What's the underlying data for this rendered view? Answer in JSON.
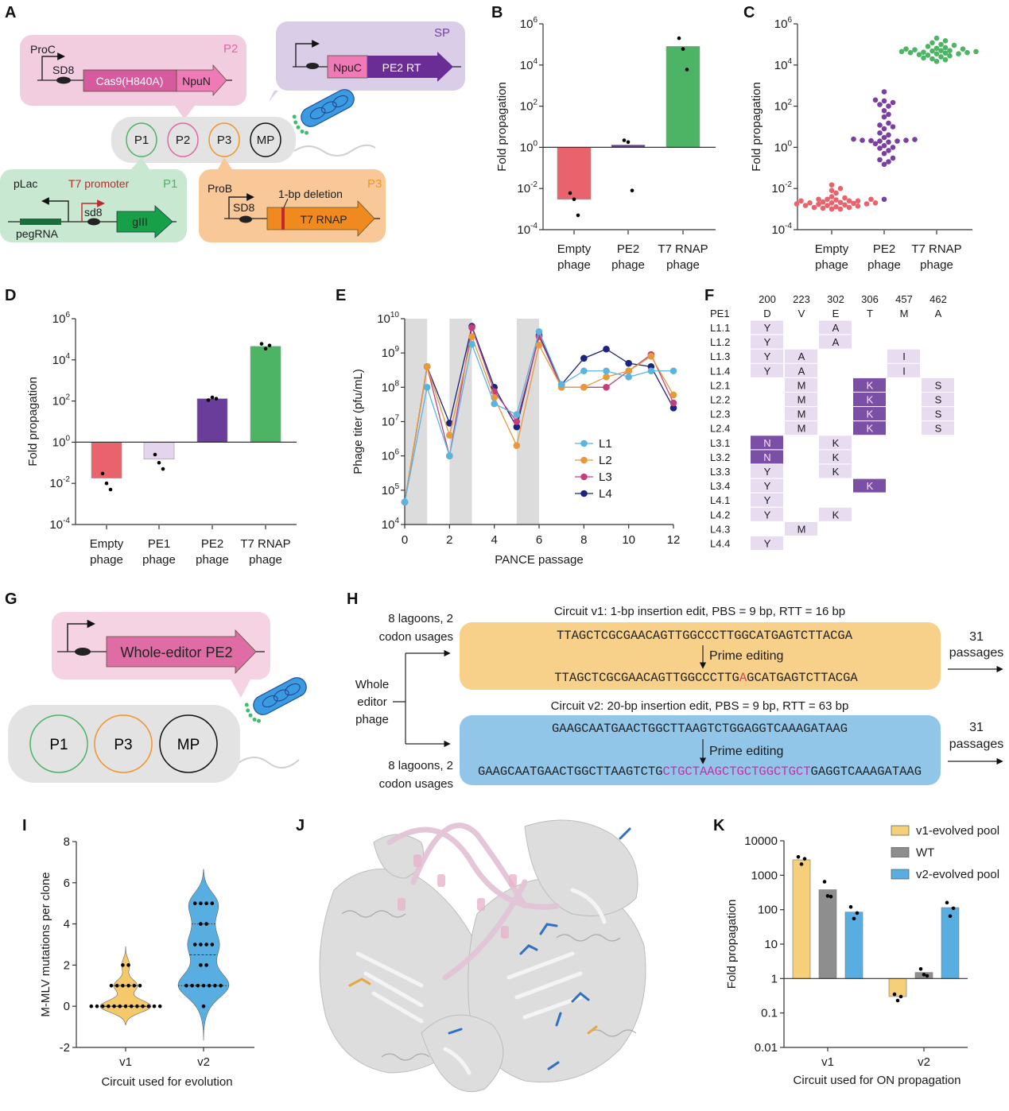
{
  "panels": {
    "A": "A",
    "B": "B",
    "C": "C",
    "D": "D",
    "E": "E",
    "F": "F",
    "G": "G",
    "H": "H",
    "I": "I",
    "J": "J",
    "K": "K"
  },
  "panel_a": {
    "p2": {
      "tag": "P2",
      "promoter": "ProC",
      "rbs": "SD8",
      "gene1": "Cas9(H840A)",
      "gene2": "NpuN"
    },
    "sp": {
      "tag": "SP",
      "gene1": "NpuC",
      "gene2": "PE2 RT"
    },
    "cell": {
      "p1": "P1",
      "p2": "P2",
      "p3": "P3",
      "mp": "MP"
    },
    "p1": {
      "tag": "P1",
      "plac": "pLac",
      "t7": "T7 promoter",
      "rbs": "sd8",
      "grna": "pegRNA",
      "gene": "gIII"
    },
    "p3": {
      "tag": "P3",
      "promoter": "ProB",
      "rbs": "SD8",
      "deletion": "1-bp deletion",
      "gene": "T7 RNAP"
    },
    "colors": {
      "p1": "#4cb464",
      "p2": "#e066a6",
      "p3": "#f0952a",
      "sp": "#7b3fa0",
      "t7_promoter": "#c0282d"
    }
  },
  "chart_data": [
    {
      "panel": "B",
      "type": "bar",
      "yscale": "log",
      "ylim": [
        0.0001,
        1000000
      ],
      "baseline": 1,
      "ylabel": "Fold propagation",
      "xlabel": "",
      "categories": [
        "Empty phage",
        "PE2 phage",
        "T7 RNAP phage"
      ],
      "values": [
        0.003,
        1.3,
        80000
      ],
      "points": [
        [
          0.006,
          0.003,
          0.0005
        ],
        [
          2.2,
          1.8,
          0.008
        ],
        [
          200000,
          60000,
          6000
        ]
      ],
      "colors": [
        "#e8636b",
        "#6a3d9a",
        "#4cb464"
      ]
    },
    {
      "panel": "C",
      "type": "scatter",
      "yscale": "log",
      "ylim": [
        0.0001,
        1000000
      ],
      "ylabel": "Fold propagation",
      "xlabel": "",
      "categories": [
        "Empty phage",
        "PE2 phage",
        "T7 RNAP phage"
      ],
      "colors": [
        "#e8636b",
        "#7b3fa0",
        "#4cb464"
      ],
      "points": [
        [
          0.015,
          0.01,
          0.008,
          0.006,
          0.004,
          0.0035,
          0.003,
          0.003,
          0.0028,
          0.0025,
          0.0025,
          0.0022,
          0.002,
          0.002,
          0.002,
          0.0019,
          0.0018,
          0.0018,
          0.0017,
          0.0016,
          0.0015,
          0.0015,
          0.0014,
          0.0013,
          0.0012,
          0.0012,
          0.0011,
          0.001,
          0.001,
          0.0025,
          0.003,
          0.0021
        ],
        [
          500,
          200,
          180,
          150,
          120,
          100,
          60,
          40,
          30,
          15,
          12,
          10,
          8,
          5,
          4,
          3,
          2.5,
          2.2,
          2.2,
          2,
          2,
          1.8,
          1.5,
          1.2,
          1,
          0.9,
          0.7,
          0.5,
          0.3,
          0.25,
          0.2,
          0.15,
          0.003,
          2.4,
          2.1
        ],
        [
          200000,
          150000,
          120000,
          100000,
          90000,
          80000,
          70000,
          65000,
          60000,
          55000,
          50000,
          48000,
          45000,
          42000,
          40000,
          38000,
          35000,
          32000,
          30000,
          28000,
          25000,
          22000,
          20000,
          18000,
          15000,
          50000,
          45000,
          40000,
          60000,
          35000
        ]
      ]
    },
    {
      "panel": "D",
      "type": "bar",
      "yscale": "log",
      "ylim": [
        0.0001,
        1000000
      ],
      "baseline": 1,
      "ylabel": "Fold propagation",
      "xlabel": "",
      "categories": [
        "Empty phage",
        "PE1 phage",
        "PE2 phage",
        "T7 RNAP phage"
      ],
      "values": [
        0.018,
        0.15,
        130,
        45000
      ],
      "points": [
        [
          0.03,
          0.01,
          0.005
        ],
        [
          0.25,
          0.1,
          0.05
        ],
        [
          110,
          150,
          130
        ],
        [
          60000,
          35000,
          50000
        ]
      ],
      "colors": [
        "#e8636b",
        "#e4d4ee",
        "#6a3d9a",
        "#4cb464"
      ]
    },
    {
      "panel": "E",
      "type": "line",
      "yscale": "log",
      "ylim": [
        10000,
        10000000000
      ],
      "xlim": [
        0,
        12
      ],
      "ylabel": "Phage titer (pfu/mL)",
      "xlabel": "PANCE passage",
      "xticks": [
        0,
        2,
        4,
        6,
        8,
        10,
        12
      ],
      "shaded": [
        [
          0,
          1
        ],
        [
          2,
          3
        ],
        [
          5,
          6
        ]
      ],
      "x": [
        0,
        1,
        2,
        3,
        4,
        5,
        6,
        7,
        8,
        9,
        10,
        11,
        12
      ],
      "legend": "right",
      "series": [
        {
          "name": "L1",
          "color": "#5ab4e0",
          "values": [
            45000,
            100000000,
            1000000,
            1800000000,
            33000000,
            16000000,
            4200000000,
            120000000,
            300000000,
            300000000,
            200000000,
            300000000,
            300000000
          ]
        },
        {
          "name": "L2",
          "color": "#e8993a",
          "values": [
            45000,
            400000000,
            4000000,
            3000000000,
            50000000,
            2000000,
            1700000000,
            100000000,
            100000000,
            200000000,
            300000000,
            800000000,
            60000000
          ]
        },
        {
          "name": "L3",
          "color": "#c2407a",
          "values": [
            45000,
            400000000,
            1000000,
            5500000000,
            75000000,
            10000000,
            3000000000,
            100000000,
            100000000,
            100000000,
            300000000,
            900000000,
            35000000
          ]
        },
        {
          "name": "L4",
          "color": "#1a237e",
          "values": [
            45000,
            400000000,
            9000000,
            6000000000,
            100000000,
            7000000,
            3300000000,
            120000000,
            700000000,
            1300000000,
            500000000,
            400000000,
            25000000
          ]
        }
      ]
    },
    {
      "panel": "I",
      "type": "violin",
      "yscale": "linear",
      "ylim": [
        -2,
        8
      ],
      "yticks": [
        -2,
        0,
        2,
        4,
        6,
        8
      ],
      "ylabel": "M-MLV mutations per clone",
      "xlabel": "Circuit used for evolution",
      "categories": [
        "v1",
        "v2"
      ],
      "colors": [
        "#f5c86a",
        "#58aee0"
      ],
      "points": [
        [
          0,
          0,
          0,
          0,
          0,
          0,
          0,
          0,
          0,
          0,
          0,
          0,
          0,
          1,
          1,
          1,
          1,
          1,
          1,
          2,
          2
        ],
        [
          5,
          5,
          5,
          5,
          4,
          4,
          3,
          3,
          3,
          3,
          2,
          2,
          1,
          1,
          1,
          1,
          1,
          1,
          1,
          0
        ]
      ]
    },
    {
      "panel": "K",
      "type": "bar",
      "yscale": "log",
      "ylim": [
        0.01,
        10000
      ],
      "baseline": 1,
      "ylabel": "Fold propagation",
      "xlabel": "Circuit used for ON propagation",
      "yticks": [
        "10000",
        "1000",
        "100",
        "10",
        "1",
        "0.1",
        "0.01"
      ],
      "categories": [
        "v1",
        "v2"
      ],
      "legend": "top-right",
      "series": [
        {
          "name": "v1-evolved pool",
          "color": "#f5cf7a",
          "values": [
            2800,
            0.3
          ],
          "points": [
            [
              3400,
              3000,
              2100
            ],
            [
              0.35,
              0.3,
              0.23
            ]
          ]
        },
        {
          "name": "WT",
          "color": "#8e8e8e",
          "values": [
            380,
            1.5
          ],
          "points": [
            [
              650,
              240,
              250
            ],
            [
              1.9,
              1.2,
              1.3
            ]
          ]
        },
        {
          "name": "v2-evolved pool",
          "color": "#58aee0",
          "values": [
            85,
            115
          ],
          "points": [
            [
              120,
              80,
              55
            ],
            [
              160,
              110,
              65
            ]
          ]
        }
      ]
    }
  ],
  "panel_f": {
    "positions": [
      "200",
      "223",
      "302",
      "306",
      "457",
      "462"
    ],
    "wt_label": "PE1",
    "wt": [
      "D",
      "V",
      "E",
      "T",
      "M",
      "A"
    ],
    "light_color": "#e8dcf0",
    "dark_color": "#7b4fa6",
    "emphasized": [
      {
        "position": "200",
        "residue": "N"
      },
      {
        "position": "306",
        "residue": "K"
      }
    ],
    "rows": [
      {
        "label": "L1.1",
        "cells": [
          "Y",
          "",
          "A",
          "",
          "",
          ""
        ]
      },
      {
        "label": "L1.2",
        "cells": [
          "Y",
          "",
          "A",
          "",
          "",
          ""
        ]
      },
      {
        "label": "L1.3",
        "cells": [
          "Y",
          "A",
          "",
          "",
          "I",
          ""
        ]
      },
      {
        "label": "L1.4",
        "cells": [
          "Y",
          "A",
          "",
          "",
          "I",
          ""
        ]
      },
      {
        "label": "L2.1",
        "cells": [
          "",
          "M",
          "",
          "K",
          "",
          "S"
        ]
      },
      {
        "label": "L2.2",
        "cells": [
          "",
          "M",
          "",
          "K",
          "",
          "S"
        ]
      },
      {
        "label": "L2.3",
        "cells": [
          "",
          "M",
          "",
          "K",
          "",
          "S"
        ]
      },
      {
        "label": "L2.4",
        "cells": [
          "",
          "M",
          "",
          "K",
          "",
          "S"
        ]
      },
      {
        "label": "L3.1",
        "cells": [
          "N",
          "",
          "K",
          "",
          "",
          ""
        ]
      },
      {
        "label": "L3.2",
        "cells": [
          "N",
          "",
          "K",
          "",
          "",
          ""
        ]
      },
      {
        "label": "L3.3",
        "cells": [
          "Y",
          "",
          "K",
          "",
          "",
          ""
        ]
      },
      {
        "label": "L3.4",
        "cells": [
          "Y",
          "",
          "",
          "K",
          "",
          ""
        ]
      },
      {
        "label": "L4.1",
        "cells": [
          "Y",
          "",
          "",
          "",
          "",
          ""
        ]
      },
      {
        "label": "L4.2",
        "cells": [
          "Y",
          "",
          "K",
          "",
          "",
          ""
        ]
      },
      {
        "label": "L4.3",
        "cells": [
          "",
          "M",
          "",
          "",
          "",
          ""
        ]
      },
      {
        "label": "L4.4",
        "cells": [
          "Y",
          "",
          "",
          "",
          "",
          ""
        ]
      }
    ]
  },
  "panel_g": {
    "gene": "Whole-editor PE2",
    "p1": "P1",
    "p3": "P3",
    "mp": "MP"
  },
  "panel_h": {
    "lagoons_line1": "8 lagoons, 2",
    "lagoons_line2": "codon usages",
    "phage_line1": "Whole",
    "phage_line2": "editor",
    "phage_line3": "phage",
    "v1_title": "Circuit v1: 1-bp insertion edit, PBS = 9 bp, RTT = 16 bp",
    "v1_seq_before": "TTAGCTCGCGAACAGTTGGCCCTTGGCATGAGTCTTACGA",
    "v1_seq_after_pre": "TTAGCTCGCGAACAGTTGGCCCTTG",
    "v1_seq_after_ins": "A",
    "v1_seq_after_post": "GCATGAGTCTTACGA",
    "v2_title": "Circuit v2: 20-bp insertion edit, PBS = 9 bp, RTT = 63 bp",
    "v2_seq_before": "GAAGCAATGAACTGGCTTAAGTCTGGAGGTCAAAGATAAG",
    "v2_seq_after_pre": "GAAGCAATGAACTGGCTTAAGTCTG",
    "v2_seq_after_ins": "CTGCTAAGCTGCTGGCTGCT",
    "v2_seq_after_post": "GAGGTCAAAGATAAG",
    "edit_label": "Prime editing",
    "passages_n": "31",
    "passages_label": "passages",
    "colors": {
      "v1": "#f7d08a",
      "v2": "#92c6e8",
      "v1_insert": "#e0405a",
      "v2_insert": "#d02aa8"
    }
  }
}
